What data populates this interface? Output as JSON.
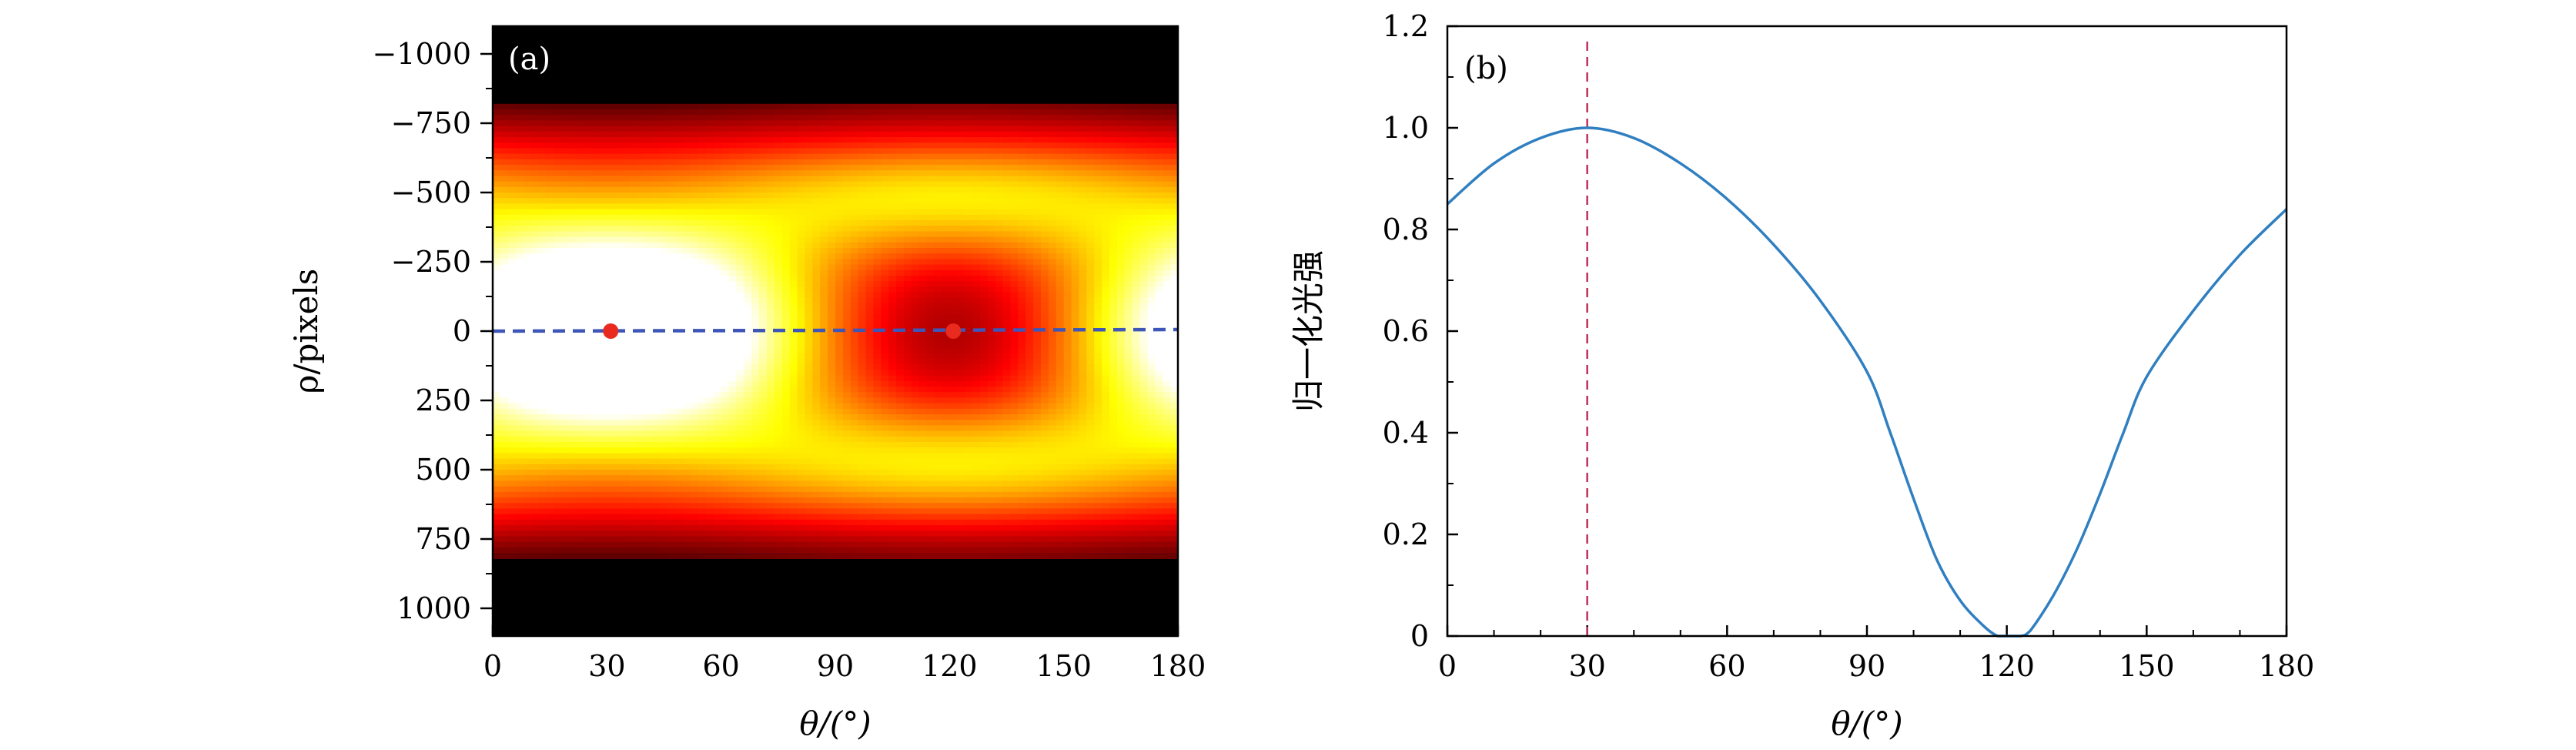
{
  "chart_data": [
    {
      "type": "heatmap",
      "panel_label": "(a)",
      "xlabel": "θ/(°)",
      "ylabel": "ρ/pixels",
      "xlim": [
        0,
        180
      ],
      "ylim": [
        -1100,
        1100
      ],
      "y_inverted": true,
      "xticks": [
        0,
        30,
        60,
        90,
        120,
        150,
        180
      ],
      "yticks": [
        -1000,
        -750,
        -500,
        -250,
        0,
        250,
        500,
        750,
        1000
      ],
      "ytick_labels": [
        "−1000",
        "−750",
        "−500",
        "−250",
        "0",
        "250",
        "500",
        "750",
        "1000"
      ],
      "colormap": "hot",
      "band_rho_range": [
        -810,
        810
      ],
      "center_line": {
        "style": "dashed",
        "color": "#3d56b7",
        "rho": 0
      },
      "peaks": [
        {
          "theta": 31,
          "rho": 0,
          "color": "#e82a1f"
        },
        {
          "theta": 121,
          "rho": 0,
          "color": "#e82a1f"
        }
      ]
    },
    {
      "type": "line",
      "panel_label": "(b)",
      "xlabel": "θ/(°)",
      "ylabel": "归一化光强",
      "xlim": [
        0,
        180
      ],
      "ylim": [
        0,
        1.2
      ],
      "xticks": [
        0,
        30,
        60,
        90,
        120,
        150,
        180
      ],
      "yticks": [
        0,
        0.2,
        0.4,
        0.6,
        0.8,
        1.0,
        1.2
      ],
      "ytick_labels": [
        "0",
        "0.2",
        "0.4",
        "0.6",
        "0.8",
        "1.0",
        "1.2"
      ],
      "series": [
        {
          "color": "#2f7fc1",
          "x": [
            0,
            10,
            20,
            30,
            40,
            50,
            60,
            70,
            80,
            90,
            95,
            100,
            105,
            110,
            115,
            118,
            120,
            123,
            125,
            130,
            135,
            140,
            145,
            150,
            160,
            170,
            180
          ],
          "y": [
            0.85,
            0.93,
            0.98,
            1.0,
            0.98,
            0.93,
            0.86,
            0.77,
            0.66,
            0.52,
            0.4,
            0.27,
            0.15,
            0.07,
            0.02,
            0.0,
            0.0,
            0.0,
            0.01,
            0.08,
            0.17,
            0.28,
            0.4,
            0.51,
            0.64,
            0.75,
            0.84
          ]
        }
      ],
      "vline": {
        "x": 30,
        "style": "dashed",
        "color": "#c0305a"
      }
    }
  ]
}
